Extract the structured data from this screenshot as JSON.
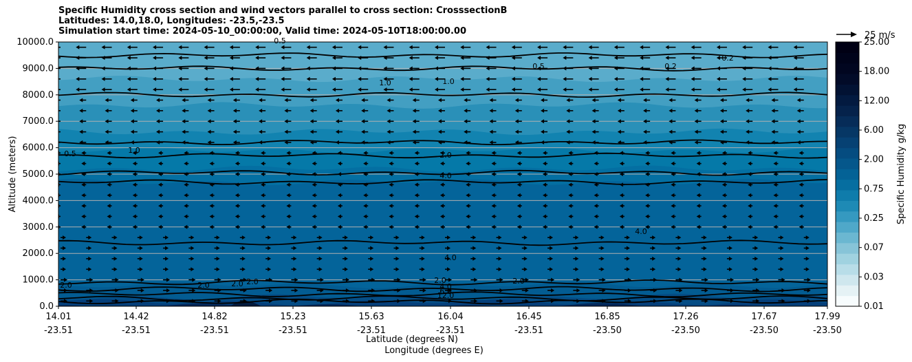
{
  "chart_data": {
    "type": "heatmap",
    "title_lines": [
      "Specific Humidity cross section and wind vectors parallel to cross section: CrosssectionB",
      "Latitudes: 14.0,18.0, Longitudes: -23.5,-23.5",
      "Simulation start time: 2024-05-10_00:00:00, Valid time: 2024-05-10T18:00:00.00"
    ],
    "ylabel": "Altitude (meters)",
    "xlabel_lat": "Latitude (degrees N)",
    "xlabel_lon": "Longitude (degrees E)",
    "ylim": [
      0,
      10000
    ],
    "yticks": [
      "0.0",
      "1000.0",
      "2000.0",
      "3000.0",
      "4000.0",
      "5000.0",
      "6000.0",
      "7000.0",
      "8000.0",
      "9000.0",
      "10000.0"
    ],
    "xticks_lat": [
      "14.01",
      "14.42",
      "14.82",
      "15.23",
      "15.63",
      "16.04",
      "16.45",
      "16.85",
      "17.26",
      "17.67",
      "17.99"
    ],
    "xticks_lon": [
      "-23.51",
      "-23.51",
      "-23.51",
      "-23.51",
      "-23.51",
      "-23.51",
      "-23.51",
      "-23.50",
      "-23.50",
      "-23.50",
      "-23.50"
    ],
    "colorbar_label": "Specific Humidity g/kg",
    "colorbar_ticks": [
      "0.01",
      "0.03",
      "0.07",
      "0.25",
      "0.75",
      "2.00",
      "6.00",
      "12.00",
      "18.00",
      "25.00"
    ],
    "colorbar_colors": [
      "#f7fcfd",
      "#e5f2f5",
      "#cfe7ee",
      "#b8dde8",
      "#a0d2e0",
      "#87c4d8",
      "#6bb7d1",
      "#4fa8c9",
      "#3599c0",
      "#1e8ab5",
      "#0f7cab",
      "#066ea0",
      "#046296",
      "#05578b",
      "#054c80",
      "#064173",
      "#063765",
      "#062c58",
      "#05224b",
      "#031a40",
      "#021233",
      "#020b28",
      "#010620",
      "#00031a",
      "#000014"
    ],
    "quiver_key": "25 m/s",
    "layers": [
      {
        "z_top": 0,
        "color": "#03285a"
      },
      {
        "z_top": 150,
        "color": "#053f7a"
      },
      {
        "z_top": 350,
        "color": "#054d85"
      },
      {
        "z_top": 800,
        "color": "#035c92"
      },
      {
        "z_top": 4700,
        "color": "#04649a"
      },
      {
        "z_top": 5200,
        "color": "#046fa2"
      },
      {
        "z_top": 5900,
        "color": "#0579a8"
      },
      {
        "z_top": 6600,
        "color": "#1283b0"
      },
      {
        "z_top": 7600,
        "color": "#2a90b8"
      },
      {
        "z_top": 8600,
        "color": "#439fc2"
      },
      {
        "z_top": 10000,
        "color": "#5aaccb"
      }
    ],
    "contours": [
      {
        "level": "12.0",
        "z": 180
      },
      {
        "level": "6.0",
        "z": 300
      },
      {
        "level": "4.0",
        "z": 450
      },
      {
        "level": "2.0",
        "z": 650
      },
      {
        "level": "2.0",
        "z": 900
      },
      {
        "level": "4.0",
        "z": 2400
      },
      {
        "level": "4.0",
        "z": 4700
      },
      {
        "level": "2.0",
        "z": 5050
      },
      {
        "level": "1.0",
        "z": 5700
      },
      {
        "level": "0.5",
        "z": 6200
      },
      {
        "level": "1.0",
        "z": 8000
      },
      {
        "level": "0.5",
        "z": 9000
      },
      {
        "level": "0.2",
        "z": 9500
      }
    ],
    "contour_labels": [
      "12.0",
      "6.0",
      "4.0",
      "2.0",
      "2.0",
      "2.0",
      "2.0",
      "2.0",
      "2.0",
      "4.0",
      "4.0",
      "4.0",
      "2.0",
      "1.0",
      "0.5",
      "1.0",
      "1.0",
      "0.5",
      "0.5",
      "0.2",
      "0.2"
    ]
  }
}
